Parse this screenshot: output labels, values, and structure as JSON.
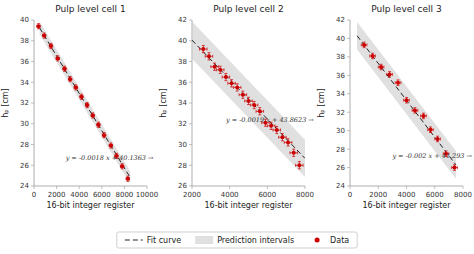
{
  "chart_data": [
    {
      "type": "scatter",
      "title": "Pulp level cell 1",
      "x_label": "16-bit integer register",
      "y_label": "hₚ [cm]",
      "xlim": [
        0,
        10000
      ],
      "ylim": [
        24,
        40
      ],
      "xticks": [
        0,
        2000,
        4000,
        6000,
        8000,
        10000
      ],
      "yticks": [
        24,
        26,
        28,
        30,
        32,
        34,
        36,
        38,
        40
      ],
      "grid": false,
      "legend": "bottom",
      "annotations": [
        {
          "text": "y = -0.0018 x + 40.1363 →",
          "x": 2800,
          "y": 26.5
        }
      ],
      "series": [
        {
          "name": "Fit curve",
          "type": "line",
          "line_style": "dashed",
          "color": "#222222",
          "x": [
            500,
            8500
          ],
          "values": [
            39.2363,
            24.8363
          ]
        },
        {
          "name": "Prediction intervals",
          "type": "area",
          "color": "#cccccc",
          "x": [
            500,
            8500
          ],
          "lower": [
            38.6363,
            24.2363
          ],
          "upper": [
            39.8363,
            25.4363
          ]
        },
        {
          "name": "Data",
          "type": "scatter",
          "marker": "circle",
          "color": "#cc0000",
          "x": [
            400,
            900,
            1500,
            2100,
            2700,
            3200,
            3700,
            4200,
            4700,
            5200,
            5700,
            6200,
            6800,
            7300,
            7800,
            8300
          ],
          "values": [
            39.4,
            38.5,
            37.5,
            36.3,
            35.3,
            34.3,
            33.5,
            32.6,
            31.8,
            30.8,
            29.9,
            28.9,
            27.9,
            26.9,
            25.9,
            24.7
          ],
          "xerr": 150,
          "yerr": 0.25
        }
      ]
    },
    {
      "type": "scatter",
      "title": "Pulp level cell 2",
      "x_label": "16-bit integer register",
      "y_label": "hₚ [cm]",
      "xlim": [
        2000,
        8000
      ],
      "ylim": [
        26,
        42
      ],
      "xticks": [
        2000,
        4000,
        6000,
        8000
      ],
      "yticks": [
        26,
        28,
        30,
        32,
        34,
        36,
        38,
        40,
        42
      ],
      "grid": false,
      "annotations": [
        {
          "text": "y = -0.0019 x + 43.8623 →",
          "x": 3800,
          "y": 32.2
        }
      ],
      "series": [
        {
          "type": "line",
          "line_style": "dashed",
          "color": "#222222",
          "x": [
            2000,
            8000
          ],
          "values": [
            40.0623,
            28.6623
          ]
        },
        {
          "type": "area",
          "color": "#cccccc",
          "x": [
            2000,
            8000
          ],
          "lower": [
            38.2623,
            26.8623
          ],
          "upper": [
            41.8623,
            30.4623
          ]
        },
        {
          "type": "scatter",
          "marker": "circle",
          "color": "#cc0000",
          "x": [
            2600,
            2900,
            3200,
            3500,
            3800,
            4100,
            4400,
            4700,
            5000,
            5300,
            5600,
            5900,
            6200,
            6500,
            6800,
            7100,
            7400,
            7700
          ],
          "values": [
            39.2,
            38.5,
            37.5,
            37.2,
            36.5,
            35.9,
            35.5,
            34.8,
            34.2,
            33.8,
            33.2,
            32.1,
            31.8,
            31.4,
            30.7,
            30.2,
            29.2,
            28.0
          ],
          "xerr": 200,
          "yerr": 0.35
        }
      ]
    },
    {
      "type": "scatter",
      "title": "Pulp level cell 3",
      "x_label": "16-bit integer register",
      "y_label": "hₚ [cm]",
      "xlim": [
        0,
        8000
      ],
      "ylim": [
        24,
        42
      ],
      "xticks": [
        0,
        2000,
        4000,
        6000,
        8000
      ],
      "yticks": [
        24,
        26,
        28,
        30,
        32,
        34,
        36,
        38,
        40,
        42
      ],
      "grid": false,
      "annotations": [
        {
          "text": "y = -0.002 x + 41.293 →",
          "x": 3000,
          "y": 27.0
        }
      ],
      "series": [
        {
          "type": "line",
          "line_style": "dashed",
          "color": "#222222",
          "x": [
            500,
            7500
          ],
          "values": [
            40.293,
            26.293
          ]
        },
        {
          "type": "area",
          "color": "#cccccc",
          "x": [
            500,
            7500
          ],
          "lower": [
            38.793,
            24.793
          ],
          "upper": [
            41.793,
            27.793
          ]
        },
        {
          "type": "scatter",
          "marker": "circle",
          "color": "#cc0000",
          "x": [
            1000,
            1600,
            2200,
            2800,
            3400,
            4000,
            4600,
            5200,
            5700,
            6200,
            6800,
            7400
          ],
          "values": [
            39.3,
            38.1,
            36.9,
            36.1,
            35.2,
            33.3,
            32.2,
            31.6,
            30.1,
            29.1,
            27.5,
            26.0
          ],
          "xerr": 200,
          "yerr": 0.3
        }
      ]
    }
  ]
}
